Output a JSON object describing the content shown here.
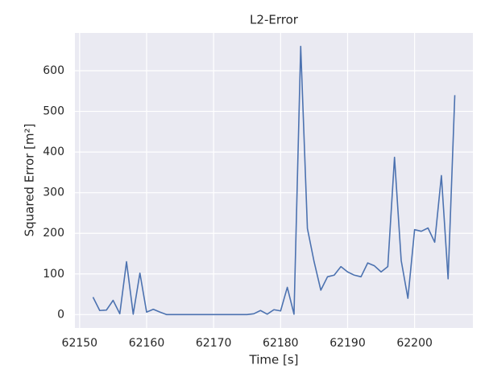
{
  "chart_data": {
    "type": "line",
    "title": "L2-Error",
    "x_label": "Time [s]",
    "y_label": "Squared Error [m²]",
    "x": [
      62152,
      62153,
      62154,
      62155,
      62156,
      62157,
      62158,
      62159,
      62160,
      62161,
      62162,
      62163,
      62164,
      62165,
      62166,
      62167,
      62168,
      62169,
      62170,
      62171,
      62172,
      62173,
      62174,
      62175,
      62176,
      62177,
      62178,
      62179,
      62180,
      62181,
      62182,
      62183,
      62184,
      62185,
      62186,
      62187,
      62188,
      62189,
      62190,
      62191,
      62192,
      62193,
      62194,
      62195,
      62196,
      62197,
      62198,
      62199,
      62200,
      62201,
      62202,
      62203,
      62204,
      62205,
      62206
    ],
    "series": [
      {
        "color": "#4c72b0",
        "values": [
          43,
          10,
          11,
          35,
          2,
          130,
          1,
          102,
          6,
          13,
          6,
          0,
          0,
          0,
          0,
          0,
          0,
          0,
          0,
          0,
          0,
          0,
          0,
          0,
          2,
          10,
          1,
          12,
          9,
          67,
          1,
          660,
          212,
          130,
          60,
          93,
          97,
          118,
          105,
          97,
          93,
          127,
          120,
          105,
          118,
          387,
          133,
          40,
          209,
          205,
          213,
          178,
          342,
          88,
          540
        ]
      }
    ],
    "xlim": [
      62149.3,
      62208.7
    ],
    "xticks": [
      62150,
      62160,
      62170,
      62180,
      62190,
      62200
    ],
    "ylim": [
      -33,
      693
    ],
    "yticks": [
      0,
      100,
      200,
      300,
      400,
      500,
      600
    ],
    "grid": true
  }
}
